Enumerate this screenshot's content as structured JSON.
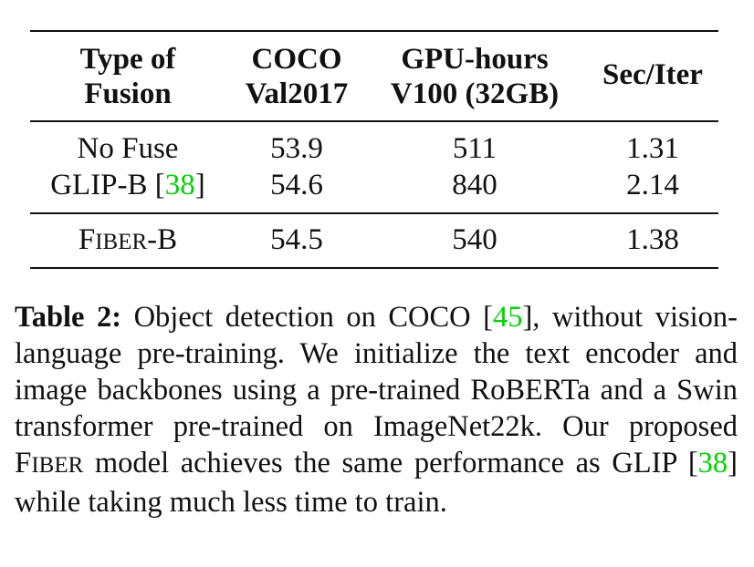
{
  "table": {
    "headers": [
      {
        "line1": "Type of",
        "line2": "Fusion"
      },
      {
        "line1": "COCO",
        "line2": "Val2017"
      },
      {
        "line1": "GPU-hours",
        "line2": "V100 (32GB)"
      },
      {
        "line1": "Sec/Iter",
        "line2": ""
      }
    ],
    "rows": [
      {
        "name": "No Fuse",
        "coco": "53.9",
        "gpu": "511",
        "sec": "1.31"
      },
      {
        "name_prefix": "GLIP-B [",
        "name_cite": "38",
        "name_suffix": "]",
        "coco": "54.6",
        "gpu": "840",
        "sec": "2.14"
      },
      {
        "name_sc": [
          "F",
          "IBER",
          "-B"
        ],
        "coco": "54.5",
        "gpu": "540",
        "sec": "1.38"
      }
    ]
  },
  "caption": {
    "label": "Table 2:",
    "part1": " Object detection on COCO [",
    "cite1": "45",
    "part2": "], without vision-language pre-training.  We initialize the text encoder and image backbones using a pre-trained RoBERTa and a Swin transformer pre-trained on ImageNet22k. Our proposed ",
    "sc_big": "F",
    "sc_small": "IBER",
    "part3": " model achieves the same performance as GLIP [",
    "cite2": "38",
    "part4": "] while taking much less time to train."
  },
  "colors": {
    "citation": "#00d400",
    "text": "#111111"
  }
}
